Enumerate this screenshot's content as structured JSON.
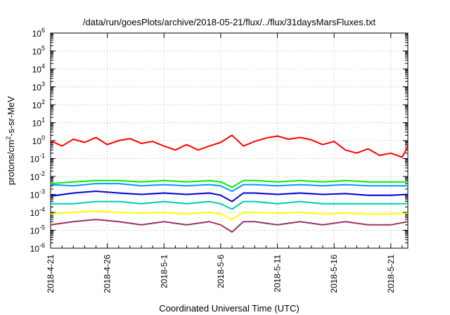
{
  "chart_data": {
    "type": "line",
    "title": "/data/run/goesPlots/archive/2018-05-21/flux/../flux/31daysMarsFluxes.txt",
    "xlabel": "Coordinated Universal Time (UTC)",
    "ylabel": {
      "pre": "protons/cm",
      "sup": "2",
      "post": "-s-sr-MeV"
    },
    "yscale": "log",
    "ylim_exp": [
      -6,
      6
    ],
    "ytick_base": "10",
    "ytick_exponents": [
      "6",
      "5",
      "4",
      "3",
      "2",
      "1",
      "0",
      "-1",
      "-2",
      "-3",
      "-4",
      "-5",
      "-6"
    ],
    "x_start": "2018-04-21",
    "x_end": "2018-05-23",
    "xticks": [
      "2018-4-21",
      "2018-4-26",
      "2018-5-1",
      "2018-5-6",
      "2018-5-11",
      "2018-5-16",
      "2018-5-21"
    ],
    "xtick_days": [
      0,
      5,
      10,
      15,
      20,
      25,
      30
    ],
    "x_range_days": [
      0,
      31.5
    ],
    "grid": true,
    "series": [
      {
        "color": "#ff0000",
        "x_days": [
          0,
          1,
          2,
          3,
          4,
          5,
          6,
          7,
          8,
          9,
          10,
          11,
          12,
          13,
          14,
          15,
          16,
          17,
          18,
          19,
          20,
          21,
          22,
          23,
          24,
          25,
          26,
          27,
          28,
          29,
          30,
          31,
          31.5
        ],
        "values": [
          1.0,
          0.5,
          1.2,
          0.8,
          1.5,
          0.6,
          1.0,
          1.3,
          0.7,
          0.9,
          0.5,
          0.3,
          0.6,
          0.3,
          0.5,
          0.8,
          2.0,
          0.5,
          0.9,
          1.4,
          1.8,
          1.2,
          1.5,
          1.1,
          0.6,
          0.9,
          0.3,
          0.2,
          0.35,
          0.15,
          0.2,
          0.12,
          0.45
        ]
      },
      {
        "color": "#00ee00",
        "x_days": [
          0,
          2,
          4,
          6,
          8,
          10,
          12,
          14,
          15,
          16,
          17,
          18,
          20,
          22,
          24,
          26,
          28,
          30,
          31.5
        ],
        "values": [
          0.004,
          0.005,
          0.006,
          0.006,
          0.005,
          0.006,
          0.005,
          0.006,
          0.005,
          0.0025,
          0.006,
          0.006,
          0.005,
          0.006,
          0.005,
          0.006,
          0.005,
          0.005,
          0.005
        ]
      },
      {
        "color": "#0099ff",
        "x_days": [
          0,
          2,
          4,
          6,
          8,
          10,
          12,
          14,
          15,
          16,
          17,
          18,
          20,
          22,
          24,
          26,
          28,
          30,
          31.5
        ],
        "values": [
          0.0035,
          0.003,
          0.004,
          0.004,
          0.003,
          0.0035,
          0.003,
          0.0035,
          0.003,
          0.0015,
          0.0035,
          0.0035,
          0.003,
          0.0035,
          0.003,
          0.0035,
          0.003,
          0.003,
          0.003
        ]
      },
      {
        "color": "#0000dd",
        "x_days": [
          0,
          2,
          4,
          6,
          8,
          10,
          12,
          14,
          15,
          16,
          17,
          18,
          20,
          22,
          24,
          26,
          28,
          30,
          31.5
        ],
        "values": [
          0.0008,
          0.0012,
          0.0015,
          0.0012,
          0.001,
          0.0012,
          0.001,
          0.0012,
          0.0009,
          0.0004,
          0.0012,
          0.0012,
          0.001,
          0.0012,
          0.001,
          0.0011,
          0.0009,
          0.0009,
          0.001
        ]
      },
      {
        "color": "#00ccaa",
        "x_days": [
          0,
          2,
          4,
          6,
          8,
          10,
          12,
          14,
          15,
          16,
          17,
          18,
          20,
          22,
          24,
          26,
          28,
          30,
          31.5
        ],
        "values": [
          0.0003,
          0.0003,
          0.0004,
          0.0004,
          0.0003,
          0.0004,
          0.0003,
          0.0004,
          0.0003,
          0.00015,
          0.0004,
          0.0004,
          0.0003,
          0.0004,
          0.0003,
          0.0003,
          0.0003,
          0.0003,
          0.0003
        ]
      },
      {
        "color": "#ffff00",
        "x_days": [
          0,
          2,
          4,
          6,
          8,
          10,
          12,
          14,
          15,
          16,
          17,
          18,
          20,
          22,
          24,
          26,
          28,
          30,
          31.5
        ],
        "values": [
          8e-05,
          0.0001,
          0.00012,
          0.0001,
          9e-05,
          0.0001,
          8e-05,
          0.0001,
          8e-05,
          4e-05,
          0.0001,
          0.0001,
          9e-05,
          0.0001,
          8e-05,
          9e-05,
          8e-05,
          8e-05,
          9e-05
        ]
      },
      {
        "color": "#993366",
        "x_days": [
          0,
          2,
          4,
          6,
          8,
          10,
          12,
          14,
          15,
          16,
          17,
          18,
          20,
          22,
          24,
          26,
          28,
          30,
          31.5
        ],
        "values": [
          2e-05,
          3e-05,
          4e-05,
          3e-05,
          2e-05,
          3e-05,
          2e-05,
          3e-05,
          2e-05,
          8e-06,
          3e-05,
          3e-05,
          2e-05,
          3e-05,
          2e-05,
          3e-05,
          2e-05,
          2e-05,
          3e-05
        ]
      }
    ]
  }
}
